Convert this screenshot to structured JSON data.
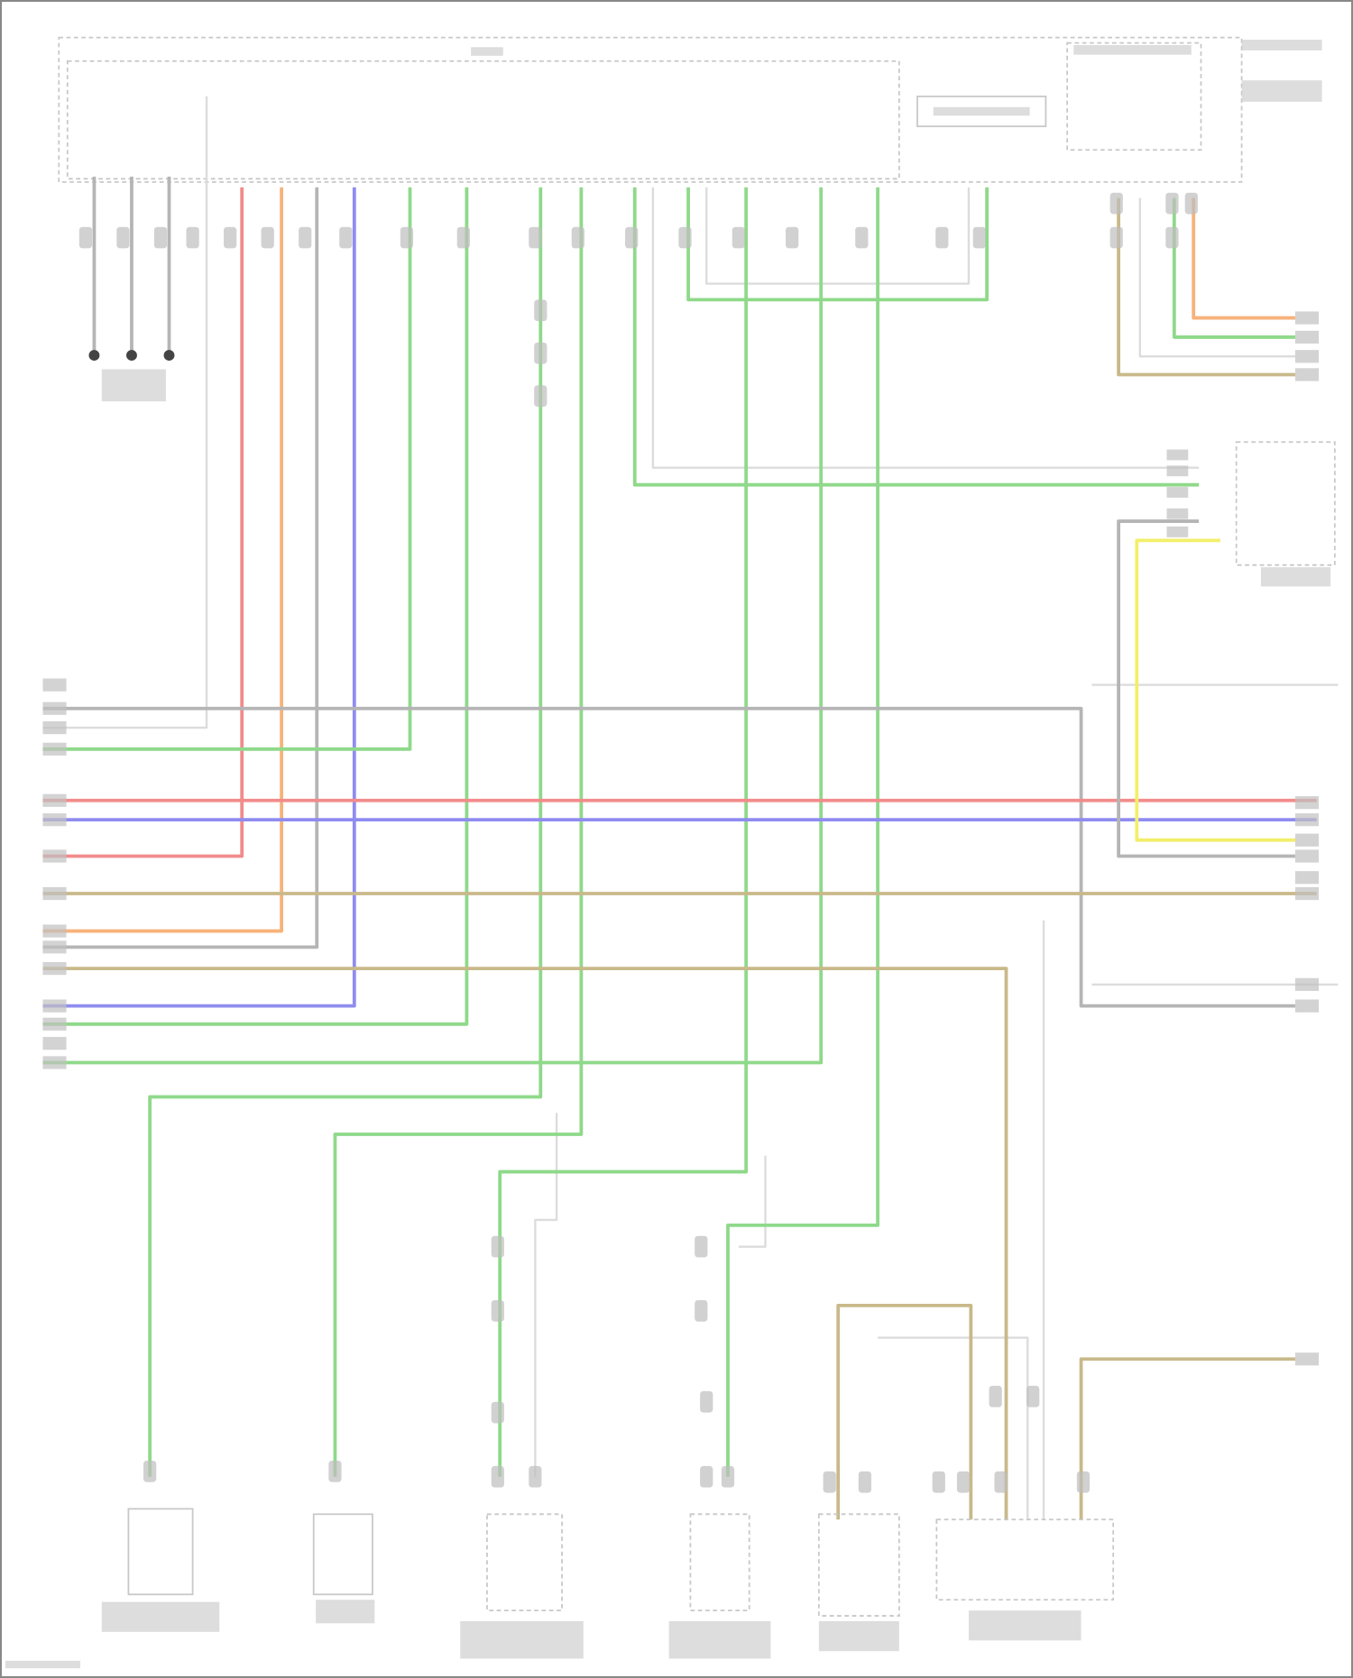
{
  "diagram": {
    "type": "wiring-diagram",
    "text_legible": false,
    "wire_colors": {
      "red": "#f28b8b",
      "orange": "#f7b27a",
      "blue": "#8f8cf0",
      "green": "#8fd98a",
      "grey": "#b5b5b5",
      "light_grey": "#dcdcdc",
      "tan": "#c9b98a",
      "yellow": "#f2ef6a"
    },
    "icons": [
      "ground-point-icon",
      "connector-icon",
      "component-box-icon"
    ]
  }
}
